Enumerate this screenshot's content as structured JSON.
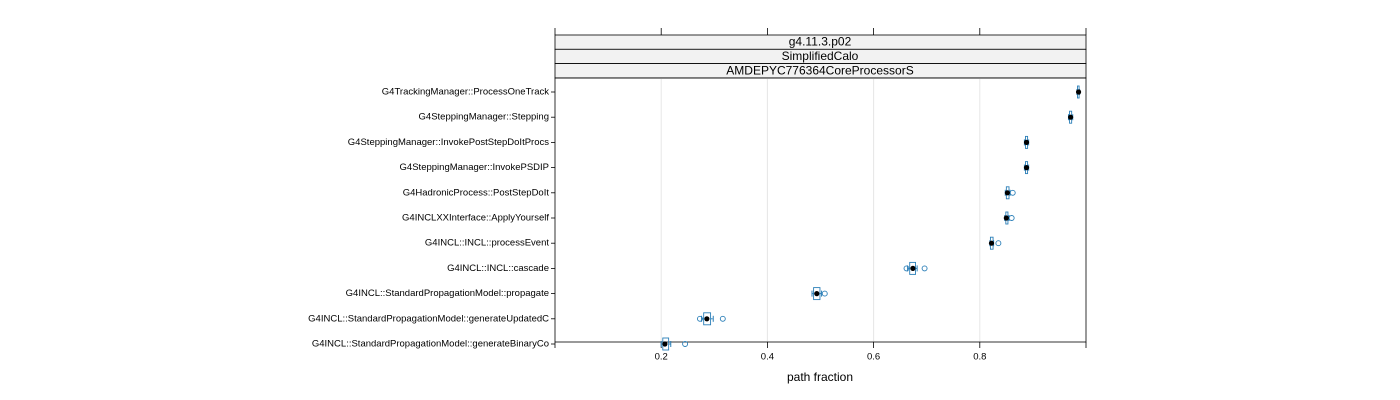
{
  "chart_data": {
    "type": "boxplot",
    "strips": [
      "g4.11.3.p02",
      "SimplifiedCalo",
      "AMDEPYC776364CoreProcessorS"
    ],
    "xlabel": "path fraction",
    "categories": [
      "G4TrackingManager::ProcessOneTrack",
      "G4SteppingManager::Stepping",
      "G4SteppingManager::InvokePostStepDoItProcs",
      "G4SteppingManager::InvokePSDIP",
      "G4HadronicProcess::PostStepDoIt",
      "G4INCLXXInterface::ApplyYourself",
      "G4INCL::INCL::processEvent",
      "G4INCL::INCL::cascade",
      "G4INCL::StandardPropagationModel::propagate",
      "G4INCL::StandardPropagationModel::generateUpdatedC",
      "G4INCL::StandardPropagationModel::generateBinaryCo"
    ],
    "whisker_low": [
      0.983,
      0.967,
      0.884,
      0.884,
      0.848,
      0.847,
      0.819,
      0.664,
      0.484,
      0.276,
      0.2
    ],
    "q1": [
      0.984,
      0.969,
      0.886,
      0.886,
      0.85,
      0.849,
      0.82,
      0.668,
      0.487,
      0.28,
      0.203
    ],
    "median": [
      0.986,
      0.971,
      0.888,
      0.888,
      0.852,
      0.85,
      0.822,
      0.674,
      0.493,
      0.286,
      0.207
    ],
    "q3": [
      0.987,
      0.973,
      0.89,
      0.89,
      0.855,
      0.853,
      0.825,
      0.679,
      0.499,
      0.293,
      0.214
    ],
    "whisker_high": [
      0.988,
      0.975,
      0.892,
      0.892,
      0.857,
      0.855,
      0.826,
      0.682,
      0.502,
      0.298,
      0.218
    ],
    "outliers": [
      [],
      [],
      [],
      [],
      [
        0.862
      ],
      [
        0.86
      ],
      [
        0.835
      ],
      [
        0.662,
        0.696
      ],
      [
        0.508
      ],
      [
        0.273,
        0.316
      ],
      [
        0.245
      ]
    ],
    "box_color": "#2b7fb8",
    "median_color": "#000000",
    "xlim": [
      0,
      1
    ],
    "xticks": [
      0.2,
      0.4,
      0.6,
      0.8
    ],
    "grid": true
  }
}
